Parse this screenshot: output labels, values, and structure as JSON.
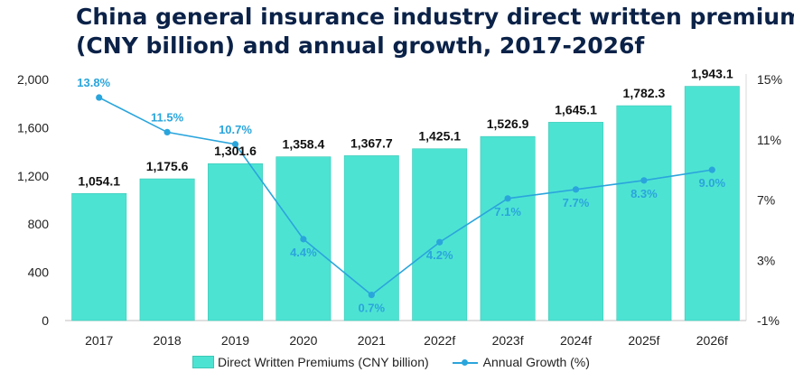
{
  "title_lines": [
    "China general insurance industry direct written premium",
    "(CNY billion) and annual growth, 2017-2026f"
  ],
  "colors": {
    "bar": "#4de3d3",
    "line": "#2aa5dc",
    "title": "#0b2248"
  },
  "chart_data": {
    "type": "bar+line",
    "title": "China general insurance industry direct written premium (CNY billion) and annual growth, 2017-2026f",
    "categories": [
      "2017",
      "2018",
      "2019",
      "2020",
      "2021",
      "2022f",
      "2023f",
      "2024f",
      "2025f",
      "2026f"
    ],
    "series": [
      {
        "name": "Direct Written Premiums (CNY billion)",
        "type": "bar",
        "axis": "left",
        "values": [
          1054.1,
          1175.6,
          1301.6,
          1358.4,
          1367.7,
          1425.1,
          1526.9,
          1645.1,
          1782.3,
          1943.1
        ],
        "labels": [
          "1,054.1",
          "1,175.6",
          "1,301.6",
          "1,358.4",
          "1,367.7",
          "1,425.1",
          "1,526.9",
          "1,645.1",
          "1,782.3",
          "1,943.1"
        ]
      },
      {
        "name": "Annual Growth (%)",
        "type": "line",
        "axis": "right",
        "values": [
          13.8,
          11.5,
          10.7,
          4.4,
          0.7,
          4.2,
          7.1,
          7.7,
          8.3,
          9.0
        ],
        "labels": [
          "13.8%",
          "11.5%",
          "10.7%",
          "4.4%",
          "0.7%",
          "4.2%",
          "7.1%",
          "7.7%",
          "8.3%",
          "9.0%"
        ]
      }
    ],
    "y_left": {
      "ylim": [
        0,
        2000
      ],
      "ticks": [
        0,
        400,
        800,
        1200,
        1600,
        2000
      ],
      "tick_labels": [
        "0",
        "400",
        "800",
        "1,200",
        "1,600",
        "2,000"
      ]
    },
    "y_right": {
      "ylim": [
        -1,
        15
      ],
      "ticks": [
        -1,
        3,
        7,
        11,
        15
      ],
      "tick_labels": [
        "-1%",
        "3%",
        "7%",
        "11%",
        "15%"
      ]
    },
    "legend": "bottom",
    "grid": false
  }
}
